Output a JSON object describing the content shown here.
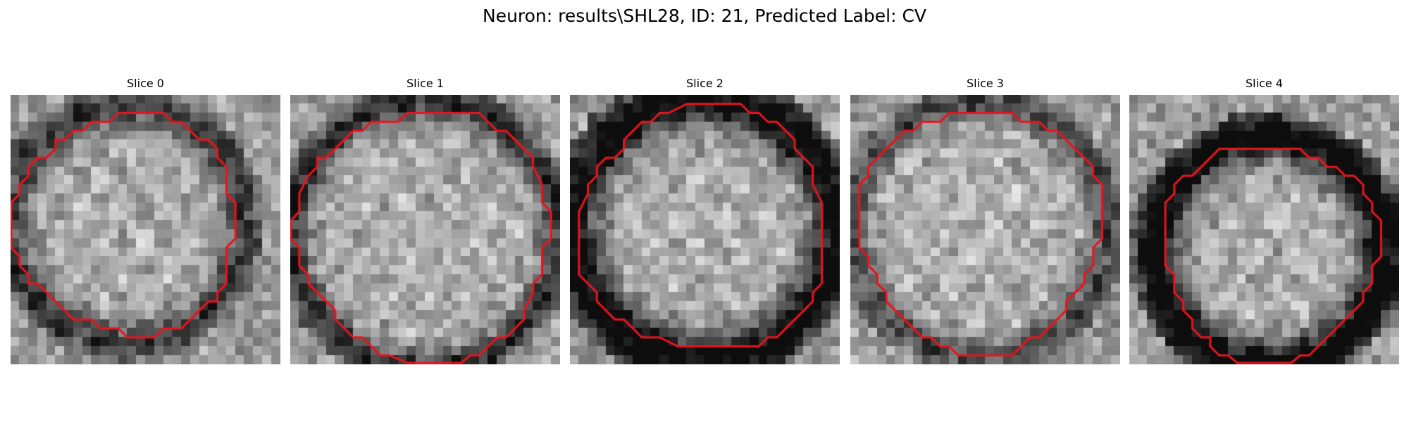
{
  "figure": {
    "title": "Neuron: results\\SHL28, ID: 21, Predicted Label: CV"
  },
  "panels": [
    {
      "title": "Slice 0",
      "image": "grayscale-microscopy-crop-with-red-contour"
    },
    {
      "title": "Slice 1",
      "image": "grayscale-microscopy-crop-with-red-contour"
    },
    {
      "title": "Slice 2",
      "image": "grayscale-microscopy-crop-with-red-contour"
    },
    {
      "title": "Slice 3",
      "image": "grayscale-microscopy-crop-with-red-contour"
    },
    {
      "title": "Slice 4",
      "image": "grayscale-microscopy-crop-with-red-contour"
    }
  ],
  "colors": {
    "contour": "#e8141e",
    "background": "#ffffff"
  }
}
